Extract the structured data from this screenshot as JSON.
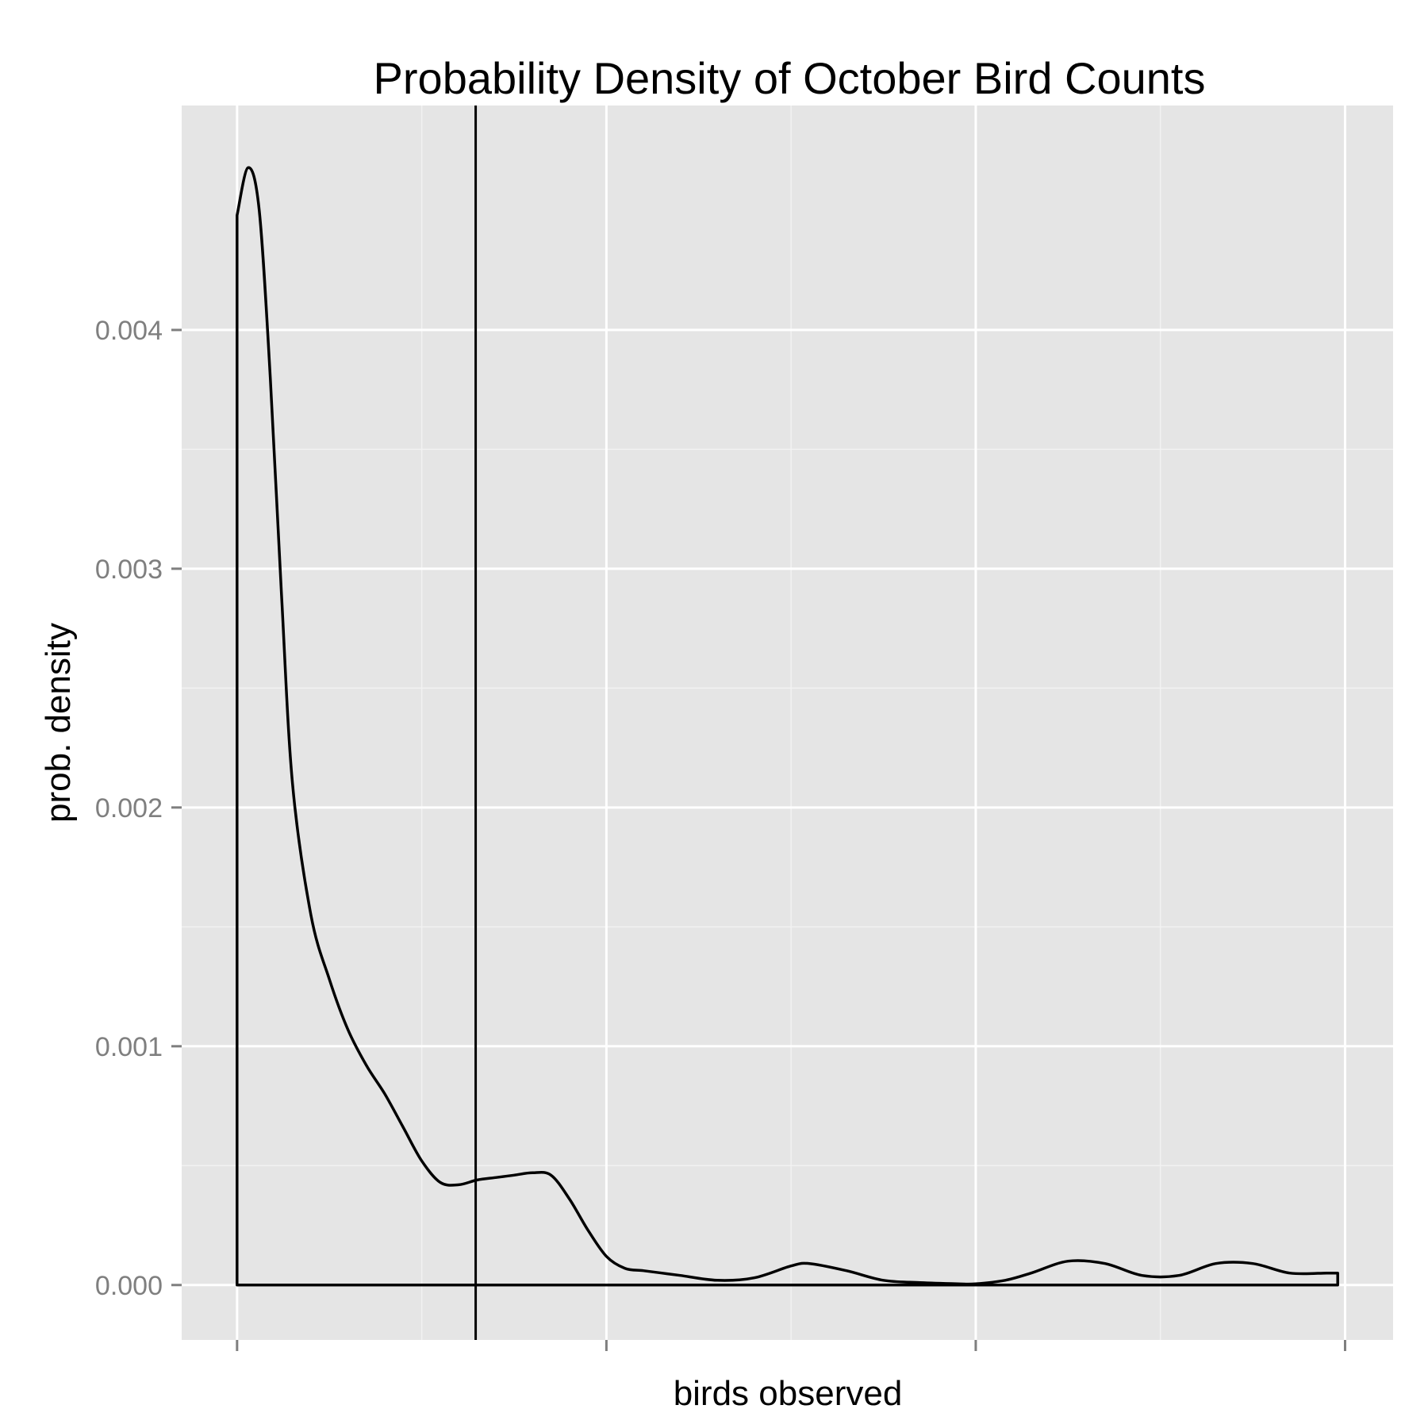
{
  "chart_data": {
    "type": "area",
    "title": "Probability Density of October Bird Counts",
    "xlabel": "birds observed",
    "ylabel": "prob. density",
    "xlim": [
      -0.15,
      3.13
    ],
    "ylim": [
      -0.00023,
      0.00494
    ],
    "x_ticks": [
      0,
      1,
      2,
      3
    ],
    "x_tick_labels": [
      "",
      "",
      "",
      ""
    ],
    "y_ticks": [
      0,
      0.001,
      0.002,
      0.003,
      0.004
    ],
    "y_tick_labels": [
      "0.000",
      "0.001",
      "0.002",
      "0.003",
      "0.004"
    ],
    "vline_x": 0.646,
    "series": [
      {
        "x": [
          0,
          0.03,
          0.06,
          0.09,
          0.12,
          0.15,
          0.2,
          0.25,
          0.3,
          0.35,
          0.4,
          0.45,
          0.5,
          0.55,
          0.6,
          0.65,
          0.7,
          0.75,
          0.8,
          0.85,
          0.9,
          0.95,
          1.0,
          1.05,
          1.1,
          1.15,
          1.2,
          1.3,
          1.4,
          1.5,
          1.55,
          1.65,
          1.75,
          1.85,
          1.95,
          2.0,
          2.08,
          2.15,
          2.25,
          2.35,
          2.45,
          2.55,
          2.65,
          2.75,
          2.85,
          2.95,
          2.98
        ],
        "y": [
          0.00448,
          0.00468,
          0.0045,
          0.0038,
          0.0029,
          0.0021,
          0.00155,
          0.00128,
          0.00107,
          0.00092,
          0.0008,
          0.00066,
          0.00052,
          0.00043,
          0.00042,
          0.00044,
          0.00045,
          0.00046,
          0.00047,
          0.00046,
          0.00036,
          0.00023,
          0.00012,
          7e-05,
          6e-05,
          5e-05,
          4e-05,
          2e-05,
          3e-05,
          8e-05,
          9e-05,
          6e-05,
          2e-05,
          1e-05,
          5e-06,
          5e-06,
          2e-05,
          5e-05,
          0.0001,
          9e-05,
          4e-05,
          4e-05,
          9e-05,
          9e-05,
          5e-05,
          5e-05,
          5e-05
        ]
      }
    ],
    "grid": true,
    "legend": "none",
    "colors": {
      "panel_background": "#e5e5e5",
      "grid_major": "#ffffff",
      "grid_minor": "#f2f2f2",
      "line": "#000000",
      "tick_mark": "#7f7f7f"
    }
  }
}
